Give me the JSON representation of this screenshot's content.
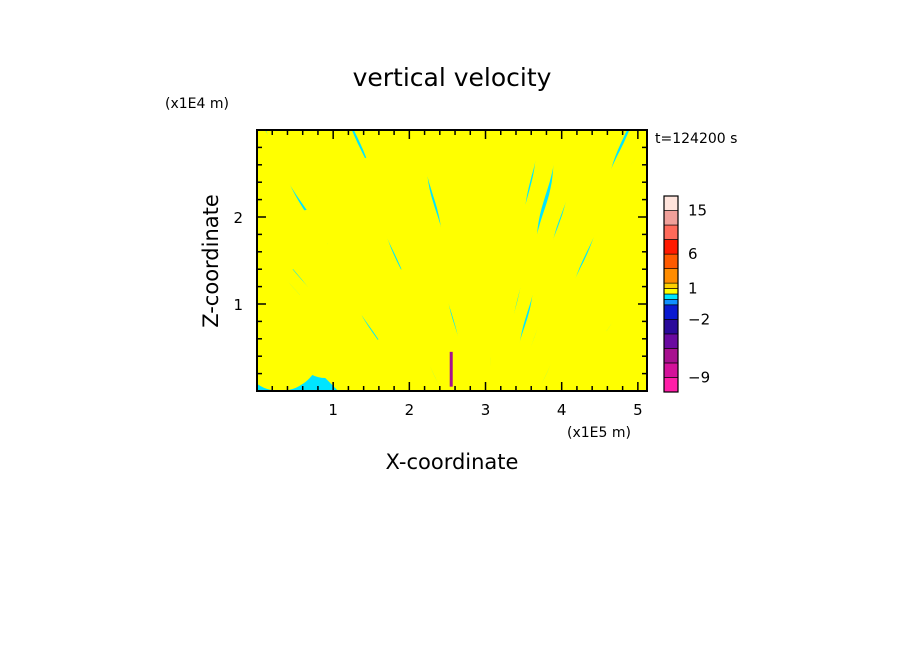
{
  "chart_data": {
    "type": "heatmap",
    "title": "vertical velocity",
    "time_label": "t=124200 s",
    "xlabel": "X-coordinate",
    "ylabel": "Z-coordinate",
    "x_unit": "(x1E5 m)",
    "y_unit": "(x1E4 m)",
    "xlim": [
      0,
      5.12
    ],
    "ylim": [
      0,
      3.0
    ],
    "x_ticks": [
      1,
      2,
      3,
      4,
      5
    ],
    "x_tick_labels": [
      "1",
      "2",
      "3",
      "4",
      "5"
    ],
    "y_ticks": [
      1,
      2
    ],
    "y_tick_labels": [
      "1",
      "2"
    ],
    "colorbar": {
      "levels": [
        -11,
        -9,
        -7,
        -5,
        -3,
        -2,
        -1,
        0,
        0.5,
        1,
        2,
        4,
        6,
        8,
        10,
        15,
        20
      ],
      "colors": [
        "#ff1fa8",
        "#d4129a",
        "#a8108f",
        "#6a0aa0",
        "#2a0a9a",
        "#0a1ad0",
        "#1090ff",
        "#00e5ff",
        "#ffff00",
        "#ffd000",
        "#ff8c00",
        "#ff5a00",
        "#ff1a00",
        "#ff6a5a",
        "#f0a09a",
        "#ffe4dc"
      ],
      "tick_values": [
        15,
        6,
        1,
        -2,
        -9
      ],
      "tick_labels": [
        "15",
        "6",
        "1",
        "−2",
        "−9"
      ]
    },
    "field_colors": {
      "negative": "#00e5ff",
      "positive": "#ffff00"
    },
    "description_of_field": "alternating bands of weak upward (yellow) and weak downward (cyan) velocity, fanning out from a source near x=3"
  }
}
